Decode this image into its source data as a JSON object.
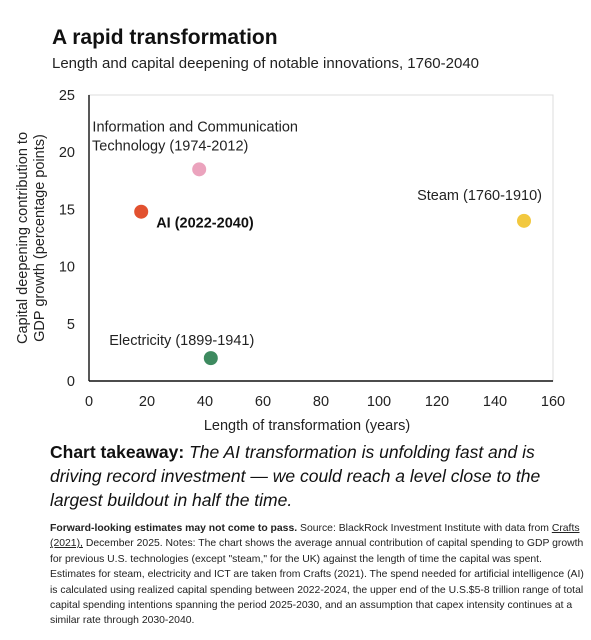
{
  "chart_data": {
    "type": "scatter",
    "title": "A rapid transformation",
    "subtitle": "Length and capital deepening of notable innovations, 1760-2040",
    "xlabel": "Length of transformation (years)",
    "ylabel": "Capital deepening contribution to GDP growth (percentage points)",
    "ylabel_lines": [
      "Capital deepening contribution to",
      "GDP growth (percentage points)"
    ],
    "xlim": [
      0,
      160
    ],
    "ylim": [
      0,
      25
    ],
    "xticks": [
      0,
      20,
      40,
      60,
      80,
      100,
      120,
      140,
      160
    ],
    "yticks": [
      0,
      5,
      10,
      15,
      20,
      25
    ],
    "grid": false,
    "points": [
      {
        "label": "AI (2022-2040)",
        "label_lines": [
          "AI (2022-2040)"
        ],
        "x": 18,
        "y": 14.8,
        "color": "#e2512f",
        "bold": true,
        "label_side": "right"
      },
      {
        "label": "Information and Communication Technology (1974-2012)",
        "label_lines": [
          "Information and Communication",
          "Technology (1974-2012)"
        ],
        "x": 38,
        "y": 18.5,
        "color": "#eba3bd",
        "bold": false,
        "label_side": "above"
      },
      {
        "label": "Steam (1760-1910)",
        "label_lines": [
          "Steam (1760-1910)"
        ],
        "x": 150,
        "y": 14,
        "color": "#f2c83f",
        "bold": false,
        "label_side": "above-left"
      },
      {
        "label": "Electricity (1899-1941)",
        "label_lines": [
          "Electricity (1899-1941)"
        ],
        "x": 42,
        "y": 2,
        "color": "#3d8a5f",
        "bold": false,
        "label_side": "above"
      }
    ]
  },
  "takeaway": {
    "lead": "Chart takeaway:",
    "body": "The AI transformation is unfolding fast and is driving record investment — we could reach a level close to the largest buildout in half the time."
  },
  "notes": {
    "bold_lead": "Forward-looking estimates may not come to pass.",
    "source_pre": "Source: BlackRock Investment Institute with data from",
    "source_link": "Crafts (2021),",
    "rest": "December 2025. Notes: The chart shows the average annual contribution of capital spending to GDP growth for previous U.S. technologies (except \"steam,\" for the UK) against the length of time the capital was spent. Estimates for steam, electricity and ICT are taken from Crafts (2021). The spend needed for artificial intelligence (AI) is calculated using realized capital spending between 2022-2024, the upper end of the U.S.$5-8 trillion range of total capital spending intentions spanning the period 2025-2030, and an assumption that capex intensity continues at a similar rate through 2030-2040."
  }
}
